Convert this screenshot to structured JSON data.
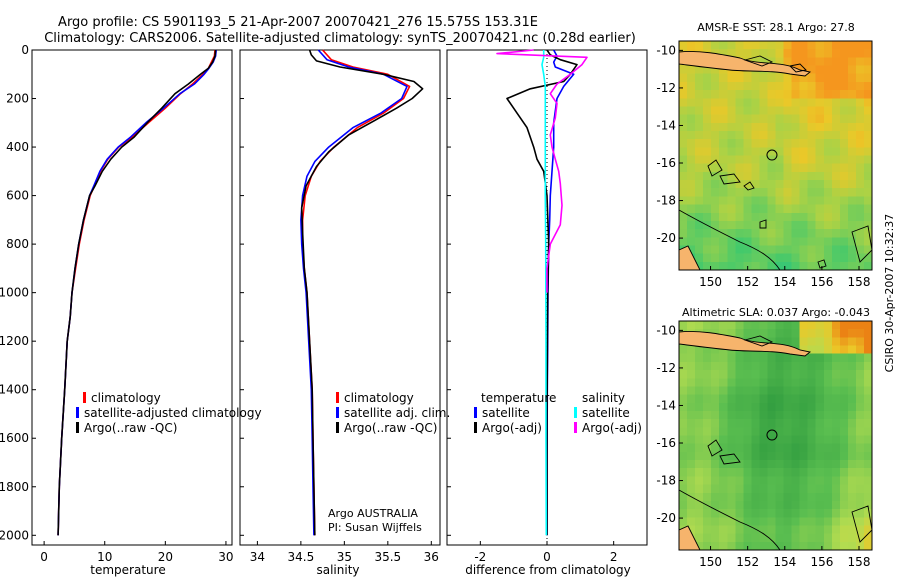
{
  "header": {
    "line1": "Argo profile: CS 5901193_5 21-Apr-2007 20070421_276 15.575S 153.31E",
    "line2": "Climatology: CARS2006. Satellite-adjusted climatology: synTS_20070421.nc (0.28d earlier)"
  },
  "side_label": "CSIRO 30-Apr-2007 10:32:37",
  "colors": {
    "clim": "#ff0000",
    "sat": "#0000ff",
    "argo": "#000000",
    "sal_sat": "#00ffff",
    "sal_argo": "#ff00ff"
  },
  "chart_data": [
    {
      "id": "temperature",
      "type": "line",
      "xlabel": "temperature",
      "xlim": [
        -2,
        31
      ],
      "ylim": [
        2040,
        0
      ],
      "xticks": [
        "0",
        "10",
        "20",
        "30"
      ],
      "yticks": [
        "0",
        "200",
        "400",
        "600",
        "800",
        "1000",
        "1200",
        "1400",
        "1600",
        "1800",
        "2000"
      ],
      "legend": [
        "climatology",
        "satellite-adjusted climatology",
        "Argo(..raw -QC)"
      ],
      "series": [
        {
          "name": "climatology",
          "color": "#ff0000",
          "x": [
            28.2,
            28.1,
            27.6,
            27.1,
            26.2,
            24.5,
            22.5,
            20.0,
            17.2,
            14.5,
            12.3,
            10.5,
            9.3,
            8.3,
            7.6,
            6.6,
            5.8,
            5.2,
            4.6,
            4.3,
            3.8,
            3.4,
            2.9,
            2.5,
            2.3
          ],
          "y": [
            0,
            25,
            50,
            75,
            100,
            140,
            180,
            240,
            300,
            360,
            400,
            450,
            500,
            560,
            600,
            700,
            800,
            900,
            1000,
            1100,
            1200,
            1400,
            1600,
            1800,
            2000
          ]
        },
        {
          "name": "satellite-adjusted climatology",
          "color": "#0000ff",
          "x": [
            28.4,
            28.3,
            27.9,
            27.2,
            26.4,
            24.8,
            22.4,
            19.7,
            16.8,
            14.2,
            12.2,
            10.4,
            9.2,
            8.2,
            7.5,
            6.5,
            5.7,
            5.1,
            4.6,
            4.3,
            3.8,
            3.4,
            2.9,
            2.5,
            2.3
          ],
          "y": [
            0,
            25,
            50,
            75,
            100,
            140,
            180,
            240,
            300,
            360,
            400,
            450,
            500,
            560,
            600,
            700,
            800,
            900,
            1000,
            1100,
            1200,
            1400,
            1600,
            1800,
            2000
          ]
        },
        {
          "name": "Argo(..raw -QC)",
          "color": "#000000",
          "x": [
            28.3,
            28.2,
            27.8,
            27.1,
            25.8,
            23.8,
            21.6,
            19.4,
            17.0,
            14.8,
            12.8,
            11.0,
            9.6,
            8.4,
            7.5,
            6.5,
            5.7,
            5.1,
            4.6,
            4.3,
            3.8,
            3.4,
            2.9,
            2.5,
            2.3
          ],
          "y": [
            0,
            25,
            50,
            75,
            100,
            140,
            180,
            240,
            300,
            360,
            400,
            450,
            500,
            560,
            600,
            700,
            800,
            900,
            1000,
            1100,
            1200,
            1400,
            1600,
            1800,
            2000
          ]
        }
      ]
    },
    {
      "id": "salinity",
      "type": "line",
      "xlabel": "salinity",
      "xlim": [
        33.8,
        36.1
      ],
      "ylim": [
        2040,
        0
      ],
      "xticks": [
        "34",
        "34.5",
        "35",
        "35.5",
        "36"
      ],
      "legend": [
        "climatology",
        "satellite adj. clim.",
        "Argo(..raw -QC)"
      ],
      "annotation": [
        "Argo AUSTRALIA",
        "PI: Susan Wijffels"
      ],
      "series": [
        {
          "name": "climatology",
          "color": "#ff0000",
          "x": [
            34.75,
            34.85,
            35.1,
            35.5,
            35.75,
            35.68,
            35.45,
            35.15,
            34.88,
            34.72,
            34.62,
            34.55,
            34.52,
            34.52,
            34.54,
            34.57,
            34.6,
            34.63,
            34.64,
            34.65,
            34.66
          ],
          "y": [
            0,
            40,
            70,
            100,
            150,
            200,
            260,
            320,
            400,
            460,
            520,
            600,
            700,
            800,
            900,
            1000,
            1200,
            1400,
            1600,
            1800,
            2000
          ]
        },
        {
          "name": "satellite adj. clim.",
          "color": "#0000ff",
          "x": [
            34.7,
            34.8,
            35.05,
            35.45,
            35.72,
            35.66,
            35.42,
            35.1,
            34.82,
            34.66,
            34.57,
            34.52,
            34.5,
            34.51,
            34.53,
            34.56,
            34.59,
            34.62,
            34.63,
            34.64,
            34.65
          ],
          "y": [
            0,
            40,
            70,
            100,
            150,
            200,
            260,
            320,
            400,
            460,
            520,
            600,
            700,
            800,
            900,
            1000,
            1200,
            1400,
            1600,
            1800,
            2000
          ]
        },
        {
          "name": "Argo(..raw -QC)",
          "color": "#000000",
          "x": [
            34.6,
            34.62,
            34.68,
            34.95,
            35.45,
            35.8,
            35.9,
            35.78,
            35.6,
            35.35,
            35.05,
            34.82,
            34.68,
            34.56,
            34.51,
            34.52,
            34.54,
            34.57,
            34.6,
            34.63,
            34.64,
            34.65,
            34.66
          ],
          "y": [
            0,
            20,
            45,
            70,
            100,
            130,
            160,
            200,
            240,
            290,
            350,
            420,
            480,
            560,
            650,
            750,
            900,
            1000,
            1200,
            1400,
            1600,
            1800,
            2000
          ]
        }
      ]
    },
    {
      "id": "difference",
      "type": "line",
      "xlabel": "difference from climatology",
      "xlim": [
        -3.0,
        3.0
      ],
      "ylim": [
        2040,
        0
      ],
      "xticks": [
        "-2",
        "0",
        "2"
      ],
      "legend": [
        "temperature",
        "satellite",
        "Argo(-adj)",
        "salinity",
        "satellite",
        "Argo(-adj)"
      ],
      "series": [
        {
          "name": "temperature satellite",
          "color": "#0000ff",
          "x": [
            0.2,
            0.3,
            0.2,
            0.25,
            0.8,
            0.5,
            0.3,
            0.2,
            0.2,
            0.15,
            0.1,
            0.08,
            0.05,
            0.03,
            0.02,
            0.01,
            0.0,
            0.0
          ],
          "y": [
            0,
            25,
            50,
            70,
            100,
            150,
            200,
            300,
            400,
            500,
            600,
            700,
            800,
            1000,
            1200,
            1400,
            1700,
            2000
          ]
        },
        {
          "name": "temperature Argo(-adj)",
          "color": "#000000",
          "x": [
            0.0,
            0.1,
            0.4,
            0.9,
            0.7,
            0.5,
            -0.5,
            -1.2,
            -0.9,
            -0.6,
            -0.4,
            -0.3,
            -0.1,
            0.0,
            0.05,
            0.02,
            0.0,
            0.0
          ],
          "y": [
            0,
            20,
            40,
            60,
            100,
            130,
            160,
            200,
            260,
            320,
            400,
            450,
            500,
            600,
            800,
            1000,
            1500,
            2000
          ]
        },
        {
          "name": "salinity satellite",
          "color": "#00ffff",
          "x": [
            -0.1,
            -0.1,
            -0.15,
            -0.1,
            -0.05,
            -0.05,
            -0.05,
            -0.05,
            -0.05,
            -0.04,
            -0.03,
            -0.03,
            -0.02
          ],
          "y": [
            0,
            30,
            60,
            100,
            150,
            200,
            300,
            400,
            600,
            800,
            1200,
            1600,
            2000
          ]
        },
        {
          "name": "salinity Argo(-adj)",
          "color": "#ff00ff",
          "x": [
            -0.4,
            -1.5,
            1.2,
            1.05,
            0.7,
            0.3,
            0.1,
            0.3,
            0.25,
            0.1,
            0.15,
            0.25,
            0.35,
            0.4,
            0.45,
            0.4,
            0.1,
            0.0,
            0.0
          ],
          "y": [
            0,
            15,
            30,
            60,
            100,
            140,
            180,
            220,
            280,
            350,
            400,
            450,
            500,
            550,
            640,
            720,
            800,
            900,
            1000
          ]
        }
      ]
    },
    {
      "id": "sst_map",
      "type": "heatmap",
      "title": "AMSR-E SST: 28.1 Argo: 27.8",
      "xticks": [
        "150",
        "152",
        "154",
        "156",
        "158"
      ],
      "yticks": [
        "-10",
        "-12",
        "-14",
        "-16",
        "-18",
        "-20"
      ],
      "xlim": [
        148.3,
        158.7
      ],
      "ylim": [
        -21.7,
        -9.5
      ],
      "marker": {
        "lon": 153.31,
        "lat": -15.575
      }
    },
    {
      "id": "sla_map",
      "type": "heatmap",
      "title": "Altimetric SLA: 0.037 Argo: -0.043",
      "xticks": [
        "150",
        "152",
        "154",
        "156",
        "158"
      ],
      "yticks": [
        "-10",
        "-12",
        "-14",
        "-16",
        "-18",
        "-20"
      ],
      "xlim": [
        148.3,
        158.7
      ],
      "ylim": [
        -21.7,
        -9.5
      ],
      "marker": {
        "lon": 153.31,
        "lat": -15.575
      }
    }
  ]
}
